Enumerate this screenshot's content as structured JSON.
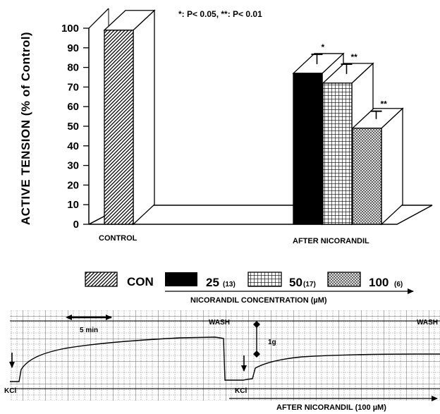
{
  "chart_data": {
    "type": "bar",
    "title": "",
    "ylabel": "ACTIVE TENSION (% of Control)",
    "ylim": [
      0,
      100
    ],
    "yticks": [
      0,
      10,
      20,
      30,
      40,
      50,
      60,
      70,
      80,
      90,
      100
    ],
    "categories": [
      "CONTROL",
      "AFTER NICORANDIL"
    ],
    "significance_note": "*: P< 0.05, **: P< 0.01",
    "series": [
      {
        "name": "CON",
        "n": "",
        "category": "CONTROL",
        "value": 99,
        "error": 0,
        "sig": "",
        "pattern": "diagonal-hatch"
      },
      {
        "name": "25",
        "n": "(13)",
        "category": "AFTER NICORANDIL",
        "value": 77,
        "error": 5,
        "sig": "*",
        "pattern": "solid-black"
      },
      {
        "name": "50",
        "n": "(17)",
        "category": "AFTER NICORANDIL",
        "value": 72,
        "error": 5,
        "sig": "**",
        "pattern": "grid"
      },
      {
        "name": "100",
        "n": "(6)",
        "category": "AFTER NICORANDIL",
        "value": 49,
        "error": 4,
        "sig": "**",
        "pattern": "cross-hatch"
      }
    ],
    "legend_axis_label": "NICORANDIL CONCENTRATION (µM)",
    "trace": {
      "time_scale_label": "5 min",
      "tension_scale_label": "1g",
      "markers": [
        "KCl",
        "KCl"
      ],
      "wash_labels": [
        "WASH",
        "WASH"
      ],
      "after_label": "AFTER NICORANDIL (100 µM)"
    }
  }
}
